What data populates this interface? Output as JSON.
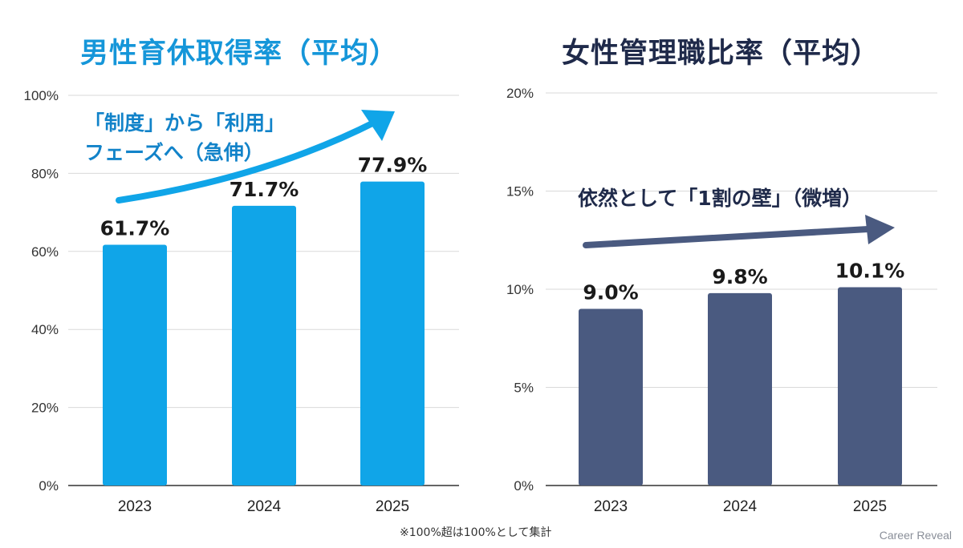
{
  "chart_data": [
    {
      "type": "bar",
      "title": "男性育休取得率（平均）",
      "categories": [
        "2023",
        "2024",
        "2025"
      ],
      "values": [
        61.7,
        71.7,
        77.9
      ],
      "data_labels": [
        "61.7%",
        "71.7%",
        "77.9%"
      ],
      "ylim": [
        0,
        100
      ],
      "yticks": [
        0,
        20,
        40,
        60,
        80,
        100
      ],
      "ytick_labels": [
        "0%",
        "20%",
        "40%",
        "60%",
        "80%",
        "100%"
      ],
      "annotation": [
        "「制度」から「利用」",
        "フェーズへ（急伸）"
      ],
      "bar_color": "#10a5e8",
      "title_color": "#1596d9",
      "grid": true
    },
    {
      "type": "bar",
      "title": "女性管理職比率（平均）",
      "categories": [
        "2023",
        "2024",
        "2025"
      ],
      "values": [
        9.0,
        9.8,
        10.1
      ],
      "data_labels": [
        "9.0%",
        "9.8%",
        "10.1%"
      ],
      "ylim": [
        0,
        20
      ],
      "yticks": [
        0,
        5,
        10,
        15,
        20
      ],
      "ytick_labels": [
        "0%",
        "5%",
        "10%",
        "15%",
        "20%"
      ],
      "annotation": [
        "依然として「1割の壁」（微増）"
      ],
      "bar_color": "#4a5a80",
      "title_color": "#1f2a4a",
      "grid": true
    }
  ],
  "footnote": "※100%超は100%として集計",
  "brand": "Career Reveal"
}
